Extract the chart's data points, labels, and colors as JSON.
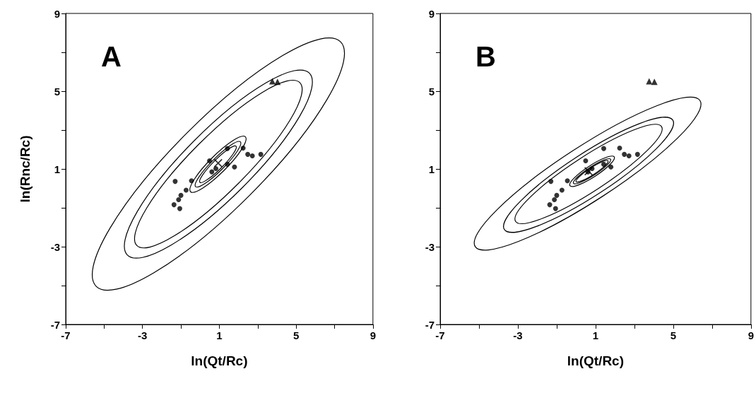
{
  "chart_data": [
    {
      "type": "scatter",
      "title": "A",
      "xlabel": "ln(Qt/Rc)",
      "ylabel": "ln(Rnc/Rc)",
      "xlim": [
        -7,
        9
      ],
      "ylim": [
        -7,
        9
      ],
      "xticks": [
        -7,
        {
          "value": -5,
          "label": null
        },
        -3,
        {
          "value": -1,
          "label": null
        },
        1,
        {
          "value": 3,
          "label": null
        },
        5,
        {
          "value": 7,
          "label": null
        },
        9
      ],
      "yticks": [
        -7,
        {
          "value": -5,
          "label": null
        },
        -3,
        {
          "value": -1,
          "label": null
        },
        1,
        {
          "value": 3,
          "label": null
        },
        5,
        {
          "value": 7,
          "label": null
        },
        9
      ],
      "grid": false,
      "series": [
        {
          "type": "scatter",
          "marker": "circle",
          "color": "#000000",
          "x": [
            -1.3,
            -0.45,
            -0.73,
            -1.0,
            -1.12,
            -1.36,
            -1.06,
            0.49,
            1.42,
            2.24,
            2.48,
            2.72,
            3.16,
            1.42,
            1.79,
            0.61,
            0.82
          ],
          "values": [
            0.36,
            0.39,
            -0.09,
            -0.36,
            -0.58,
            -0.84,
            -1.04,
            1.42,
            2.05,
            2.07,
            1.75,
            1.67,
            1.75,
            1.24,
            1.1,
            0.85,
            1.02
          ]
        },
        {
          "type": "scatter",
          "marker": "triangle",
          "color": "#000000",
          "x": [
            3.76,
            4.03
          ],
          "values": [
            5.51,
            5.48
          ]
        },
        {
          "type": "scatter",
          "marker": "cross",
          "color": "#000000",
          "x": [
            0.94
          ],
          "values": [
            1.3
          ]
        }
      ]
    },
    {
      "type": "scatter",
      "title": "B",
      "xlabel": "ln(Qt/Rc)",
      "xlim": [
        -7,
        9
      ],
      "ylim": [
        -7,
        9
      ],
      "xticks": [
        -7,
        {
          "value": -5,
          "label": null
        },
        -3,
        {
          "value": -1,
          "label": null
        },
        1,
        {
          "value": 3,
          "label": null
        },
        5,
        {
          "value": 7,
          "label": null
        },
        9
      ],
      "yticks": [
        -7,
        {
          "value": -5,
          "label": null
        },
        -3,
        {
          "value": -1,
          "label": null
        },
        1,
        {
          "value": 3,
          "label": null
        },
        5,
        {
          "value": 7,
          "label": null
        },
        9
      ],
      "grid": false,
      "series": [
        {
          "type": "scatter",
          "marker": "cross",
          "color": "#000000",
          "x": [
            0.64
          ],
          "values": [
            0.88
          ]
        },
        {
          "type": "scatter",
          "marker": "circle",
          "color": "#000000",
          "x": [
            -1.3,
            -0.45,
            -0.73,
            -1.0,
            -1.12,
            -1.36,
            -1.06,
            0.49,
            1.42,
            2.24,
            2.48,
            2.72,
            3.16,
            1.42,
            1.79,
            0.61,
            0.82
          ],
          "values": [
            0.36,
            0.39,
            -0.09,
            -0.36,
            -0.58,
            -0.84,
            -1.04,
            1.42,
            2.05,
            2.07,
            1.75,
            1.67,
            1.75,
            1.24,
            1.1,
            0.85,
            1.02
          ]
        },
        {
          "type": "scatter",
          "marker": "triangle",
          "color": "#000000",
          "x": [
            3.76,
            4.03
          ],
          "values": [
            5.51,
            5.48
          ]
        }
      ]
    }
  ]
}
